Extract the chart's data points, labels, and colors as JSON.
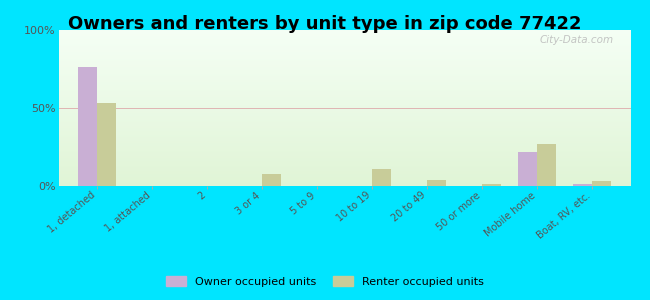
{
  "title": "Owners and renters by unit type in zip code 77422",
  "categories": [
    "1, detached",
    "1, attached",
    "2",
    "3 or 4",
    "5 to 9",
    "10 to 19",
    "20 to 49",
    "50 or more",
    "Mobile home",
    "Boat, RV, etc."
  ],
  "owner_values": [
    76,
    0,
    0,
    0,
    0,
    0,
    0,
    0,
    22,
    1
  ],
  "renter_values": [
    53,
    0,
    0,
    8,
    0,
    11,
    4,
    1,
    27,
    3
  ],
  "owner_color": "#c9afd4",
  "renter_color": "#c8cc99",
  "ylim": [
    0,
    100
  ],
  "yticks": [
    0,
    50,
    100
  ],
  "yticklabels": [
    "0%",
    "50%",
    "100%"
  ],
  "outer_background": "#00e5ff",
  "title_fontsize": 13,
  "bar_width": 0.35,
  "watermark": "City-Data.com",
  "legend_labels": [
    "Owner occupied units",
    "Renter occupied units"
  ]
}
